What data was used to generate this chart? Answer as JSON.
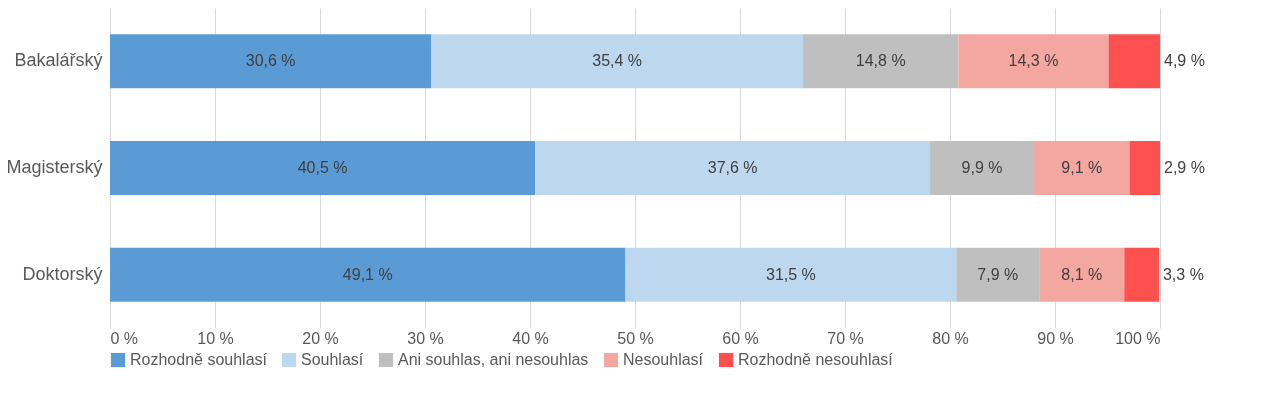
{
  "chart_data": {
    "type": "bar",
    "orientation": "horizontal",
    "stacked": true,
    "categories": [
      "Bakalářský",
      "Magisterský",
      "Doktorský"
    ],
    "series": [
      {
        "name": "Rozhodně souhlasí",
        "color": "#5b9bd5",
        "values": [
          30.6,
          40.5,
          49.1
        ],
        "value_labels": [
          "30,6 %",
          "40,5 %",
          "49,1 %"
        ]
      },
      {
        "name": "Souhlasí",
        "color": "#bdd7ee",
        "values": [
          35.4,
          37.6,
          31.5
        ],
        "value_labels": [
          "35,4 %",
          "37,6 %",
          "31,5 %"
        ]
      },
      {
        "name": "Ani souhlas, ani nesouhlas",
        "color": "#bfbfbf",
        "values": [
          14.8,
          9.9,
          7.9
        ],
        "value_labels": [
          "14,8 %",
          "9,9 %",
          "7,9 %"
        ]
      },
      {
        "name": "Nesouhlasí",
        "color": "#f4a6a0",
        "values": [
          14.3,
          9.1,
          8.1
        ],
        "value_labels": [
          "14,3 %",
          "9,1 %",
          "8,1 %"
        ]
      },
      {
        "name": "Rozhodně nesouhlasí",
        "color": "#ff5050",
        "values": [
          4.9,
          2.9,
          3.3
        ],
        "value_labels": [
          "4,9 %",
          "2,9 %",
          "3,3 %"
        ]
      }
    ],
    "xlim": [
      0,
      100
    ],
    "xticks": [
      {
        "value": 0,
        "label": "0 %"
      },
      {
        "value": 10,
        "label": "10 %"
      },
      {
        "value": 20,
        "label": "20 %"
      },
      {
        "value": 30,
        "label": "30 %"
      },
      {
        "value": 40,
        "label": "40 %"
      },
      {
        "value": 50,
        "label": "50 %"
      },
      {
        "value": 60,
        "label": "60 %"
      },
      {
        "value": 70,
        "label": "70 %"
      },
      {
        "value": 80,
        "label": "80 %"
      },
      {
        "value": 90,
        "label": "90 %"
      },
      {
        "value": 100,
        "label": "100 %"
      }
    ],
    "grid": "x",
    "legend": "bottom"
  }
}
